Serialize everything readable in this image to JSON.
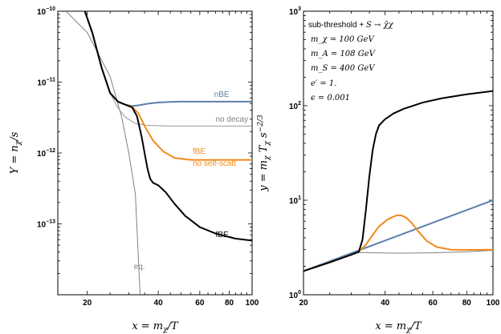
{
  "chart_data": [
    {
      "type": "line",
      "xscale": "log",
      "yscale": "log",
      "xlim": [
        15,
        100
      ],
      "ylim": [
        1e-14,
        1e-10
      ],
      "xlabel": "x = m_χ/T",
      "ylabel": "Y = n_χ/s",
      "xticks": [
        {
          "v": 20,
          "label": "20"
        },
        {
          "v": 40,
          "label": "40"
        },
        {
          "v": 60,
          "label": "60"
        },
        {
          "v": 80,
          "label": "80"
        },
        {
          "v": 100,
          "label": "100"
        }
      ],
      "yticks": [
        {
          "v": 1e-10,
          "base": "10",
          "exp": "−10"
        },
        {
          "v": 1e-11,
          "base": "10",
          "exp": "−11"
        },
        {
          "v": 1e-12,
          "base": "10",
          "exp": "−12"
        },
        {
          "v": 1e-13,
          "base": "10",
          "exp": "−13"
        }
      ],
      "series": [
        {
          "name": "eq.",
          "color": "#808080",
          "width": 1,
          "x": [
            15,
            20,
            25,
            28,
            30,
            32,
            33.5
          ],
          "y": [
            1.3e-10,
            5e-11,
            1.2e-11,
            3.2e-12,
            1e-12,
            2.6e-13,
            1e-14
          ]
        },
        {
          "name": "no decay",
          "color": "#999999",
          "width": 1,
          "x": [
            19,
            21,
            23,
            25,
            27,
            29,
            32,
            36,
            45,
            60,
            80,
            100
          ],
          "y": [
            1.3e-10,
            5e-11,
            1.6e-11,
            7e-12,
            4.3e-12,
            3.2e-12,
            2.6e-12,
            2.45e-12,
            2.4e-12,
            2.4e-12,
            2.4e-12,
            2.4e-12
          ]
        },
        {
          "name": "nBE",
          "color": "#5b7fad",
          "width": 2,
          "x": [
            19,
            21,
            23,
            25,
            27,
            29,
            31,
            33,
            36,
            40,
            45,
            50,
            60,
            80,
            100
          ],
          "y": [
            1.3e-10,
            5e-11,
            1.6e-11,
            7e-12,
            5.3e-12,
            4.8e-12,
            4.6e-12,
            4.7e-12,
            4.95e-12,
            5.15e-12,
            5.25e-12,
            5.3e-12,
            5.3e-12,
            5.3e-12,
            5.3e-12
          ]
        },
        {
          "name": "fBE no self-scatt",
          "color": "#f08a1c",
          "width": 2,
          "x": [
            19,
            21,
            23,
            25,
            27,
            29,
            31,
            33,
            35,
            38,
            42,
            47,
            55,
            65,
            80,
            100
          ],
          "y": [
            1.3e-10,
            5e-11,
            1.6e-11,
            7e-12,
            5.3e-12,
            4.8e-12,
            4.5e-12,
            3.6e-12,
            2.4e-12,
            1.5e-12,
            1.05e-12,
            8.5e-13,
            8e-13,
            8e-13,
            8e-13,
            8e-13
          ]
        },
        {
          "name": "fBE",
          "color": "#000000",
          "width": 2,
          "x": [
            19,
            21,
            23,
            25,
            27,
            29,
            31,
            32.5,
            34,
            35,
            36,
            37,
            38,
            40,
            43,
            47,
            52,
            60,
            70,
            85,
            100
          ],
          "y": [
            1.3e-10,
            5e-11,
            1.6e-11,
            7e-12,
            5.3e-12,
            4.8e-12,
            4.4e-12,
            3.3e-12,
            1.7e-12,
            1e-12,
            6e-13,
            4.3e-13,
            3.8e-13,
            3.5e-13,
            2.8e-13,
            1.9e-13,
            1.3e-13,
            9e-14,
            7.3e-14,
            6.2e-14,
            5.8e-14
          ]
        }
      ],
      "annotations": [
        {
          "text": "nBE",
          "x": 69,
          "y": 6.2e-12,
          "color": "#5b7fad",
          "anchor": "start"
        },
        {
          "text": "no decay",
          "x": 70,
          "y": 2.75e-12,
          "color": "#808080",
          "anchor": "start"
        },
        {
          "text": "fBE",
          "x": 56,
          "y": 9.8e-13,
          "color": "#f08a1c",
          "anchor": "start"
        },
        {
          "text": "no self-scatt",
          "x": 56,
          "y": 6.6e-13,
          "color": "#f08a1c",
          "anchor": "start"
        },
        {
          "text": "fBE",
          "x": 70,
          "y": 6.5e-14,
          "color": "#000000",
          "anchor": "start"
        },
        {
          "text": "eq.",
          "x": 31.5,
          "y": 2.3e-14,
          "color": "#808080",
          "anchor": "start"
        }
      ]
    },
    {
      "type": "line",
      "xscale": "log",
      "yscale": "log",
      "xlim": [
        20,
        100
      ],
      "ylim": [
        1,
        1000
      ],
      "xlabel": "x = m_χ/T",
      "ylabel": "y = m_χ T_χ s^(−2/3)",
      "xticks": [
        {
          "v": 20,
          "label": "20"
        },
        {
          "v": 40,
          "label": "40"
        },
        {
          "v": 60,
          "label": "60"
        },
        {
          "v": 80,
          "label": "80"
        },
        {
          "v": 100,
          "label": "100"
        }
      ],
      "yticks": [
        {
          "v": 1000,
          "base": "10",
          "exp": "3"
        },
        {
          "v": 100,
          "base": "10",
          "exp": "2"
        },
        {
          "v": 10,
          "base": "10",
          "exp": "1"
        },
        {
          "v": 1,
          "base": "10",
          "exp": "0"
        }
      ],
      "series": [
        {
          "name": "no decay",
          "color": "#808080",
          "width": 1,
          "x": [
            20,
            25,
            30,
            32,
            36,
            45,
            60,
            80,
            100
          ],
          "y": [
            1.78,
            2.2,
            2.65,
            2.8,
            2.78,
            2.75,
            2.78,
            2.85,
            2.95
          ]
        },
        {
          "name": "nBE",
          "color": "#5b7fad",
          "width": 2,
          "x": [
            20,
            100
          ],
          "y": [
            1.78,
            10.0
          ]
        },
        {
          "name": "fBE no self-scatt",
          "color": "#f08a1c",
          "width": 2,
          "x": [
            20,
            25,
            30,
            32,
            34,
            36,
            38,
            41,
            44,
            46,
            48,
            50,
            53,
            57,
            62,
            70,
            80,
            100
          ],
          "y": [
            1.78,
            2.2,
            2.65,
            2.85,
            3.4,
            4.3,
            5.3,
            6.3,
            6.9,
            6.9,
            6.5,
            5.8,
            4.7,
            3.7,
            3.2,
            3.0,
            2.98,
            3.0
          ]
        },
        {
          "name": "fBE",
          "color": "#000000",
          "width": 2,
          "x": [
            20,
            25,
            30,
            32,
            33,
            34,
            35,
            36,
            37,
            38,
            40,
            43,
            47,
            55,
            65,
            80,
            100
          ],
          "y": [
            1.78,
            2.2,
            2.65,
            2.85,
            3.8,
            8,
            18,
            34,
            50,
            62,
            72,
            83,
            93,
            108,
            120,
            132,
            143
          ]
        }
      ]
    }
  ],
  "params_panel": {
    "head": "sub-threshold + ",
    "head_math": "S → χ̄χ",
    "lines": [
      "m_χ = 100 GeV",
      "m_A = 108 GeV",
      "m_S = 400 GeV",
      "e′ = 1.",
      "ϵ = 0.001"
    ]
  }
}
